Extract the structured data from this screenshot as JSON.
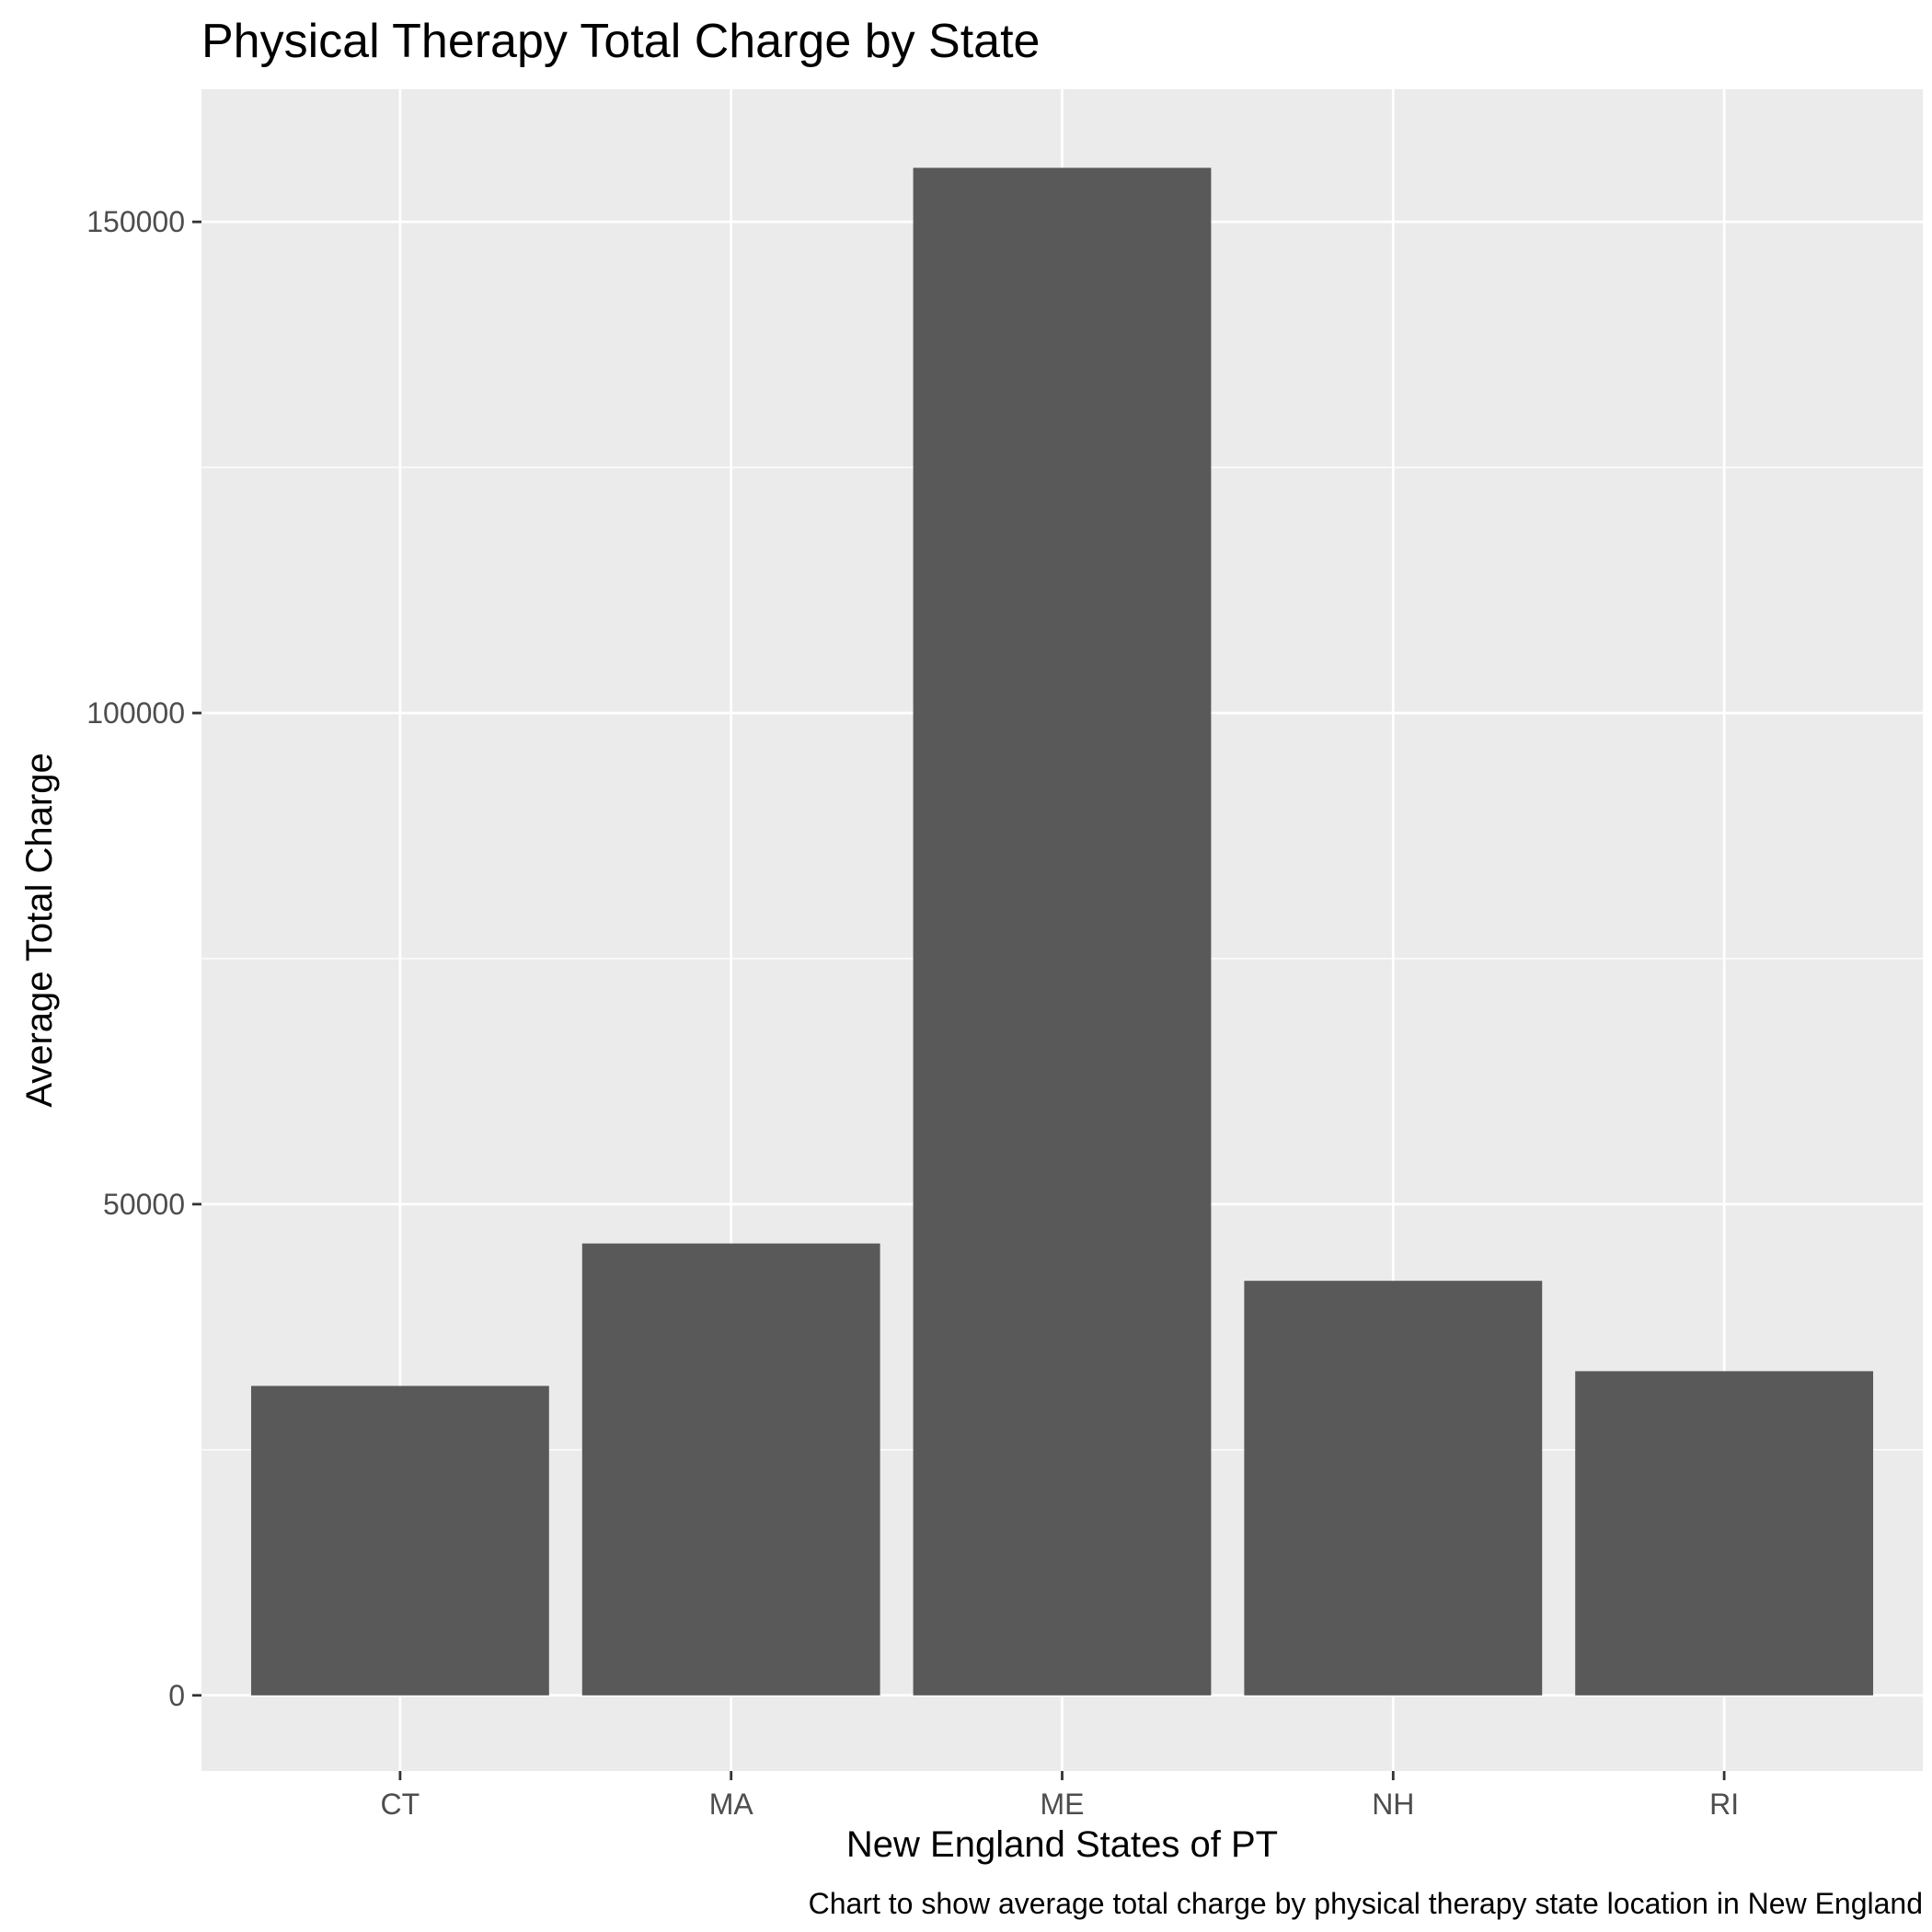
{
  "chart_data": {
    "type": "bar",
    "title": "Physical Therapy Total Charge by State",
    "xlabel": "New England States of PT",
    "ylabel": "Average Total Charge",
    "caption": "Chart to show average total charge by physical therapy state location in New England",
    "categories": [
      "CT",
      "MA",
      "ME",
      "NH",
      "RI"
    ],
    "values": [
      31500,
      46000,
      155500,
      42200,
      33000
    ],
    "ylim": [
      -7700,
      163500
    ],
    "yticks": [
      0,
      50000,
      100000,
      150000
    ],
    "ytick_labels": [
      "0",
      "50000",
      "100000",
      "150000"
    ],
    "grid": true,
    "legend": "none",
    "colors": {
      "bar": "#595959",
      "panel": "#ebebeb",
      "grid": "#ffffff",
      "tick": "#333333"
    }
  }
}
